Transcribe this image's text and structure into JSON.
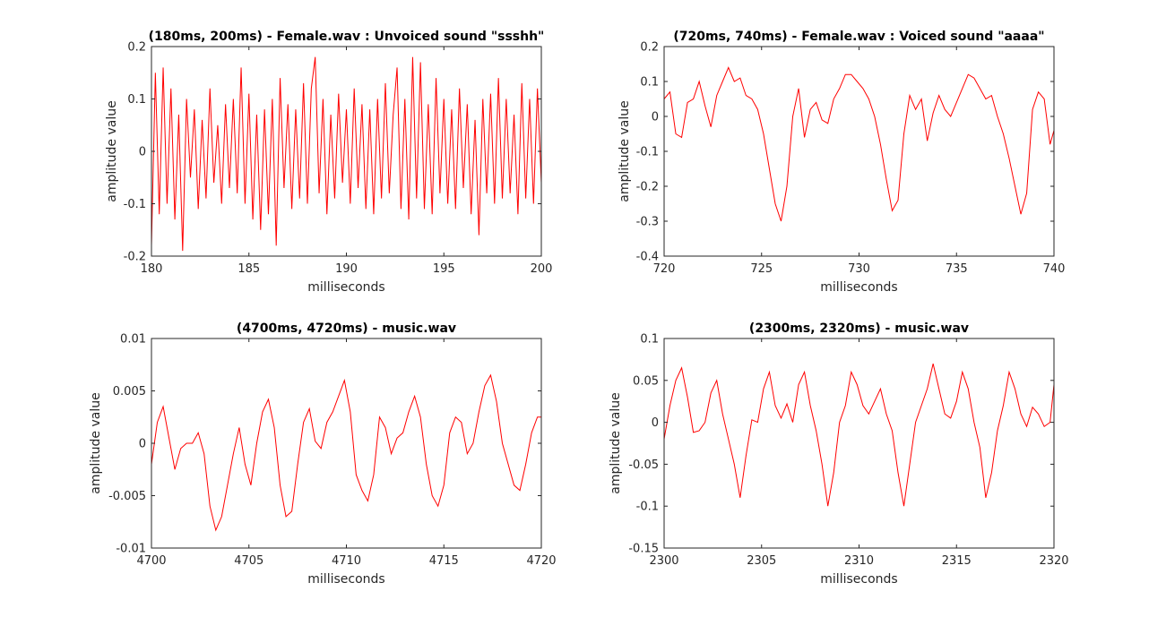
{
  "figure": {
    "background": "#ffffff",
    "line_color": "#ff0000",
    "axis_color": "#262626"
  },
  "chart_data": [
    {
      "type": "line",
      "title": "(180ms, 200ms) - Female.wav : Unvoiced sound \"ssshh\"",
      "xlabel": "milliseconds",
      "ylabel": "amplitude value",
      "xlim": [
        180,
        200
      ],
      "ylim": [
        -0.2,
        0.2
      ],
      "xticks": [
        180,
        185,
        190,
        195,
        200
      ],
      "xtick_labels": [
        "180",
        "185",
        "190",
        "195",
        "200"
      ],
      "yticks": [
        -0.2,
        -0.1,
        0,
        0.1,
        0.2
      ],
      "ytick_labels": [
        "-0.2",
        "-0.1",
        "0",
        "0.1",
        "0.2"
      ],
      "grid": false,
      "series": [
        {
          "x": [
            180,
            180.2,
            180.4,
            180.6,
            180.8,
            181,
            181.2,
            181.4,
            181.6,
            181.8,
            182,
            182.2,
            182.4,
            182.6,
            182.8,
            183,
            183.2,
            183.4,
            183.6,
            183.8,
            184,
            184.2,
            184.4,
            184.6,
            184.8,
            185,
            185.2,
            185.4,
            185.6,
            185.8,
            186,
            186.2,
            186.4,
            186.6,
            186.8,
            187,
            187.2,
            187.4,
            187.6,
            187.8,
            188,
            188.2,
            188.4,
            188.6,
            188.8,
            189,
            189.2,
            189.4,
            189.6,
            189.8,
            190,
            190.2,
            190.4,
            190.6,
            190.8,
            191,
            191.2,
            191.4,
            191.6,
            191.8,
            192,
            192.2,
            192.4,
            192.6,
            192.8,
            193,
            193.2,
            193.4,
            193.6,
            193.8,
            194,
            194.2,
            194.4,
            194.6,
            194.8,
            195,
            195.2,
            195.4,
            195.6,
            195.8,
            196,
            196.2,
            196.4,
            196.6,
            196.8,
            197,
            197.2,
            197.4,
            197.6,
            197.8,
            198,
            198.2,
            198.4,
            198.6,
            198.8,
            199,
            199.2,
            199.4,
            199.6,
            199.8,
            200
          ],
          "y": [
            -0.18,
            0.15,
            -0.12,
            0.16,
            -0.1,
            0.12,
            -0.13,
            0.07,
            -0.19,
            0.1,
            -0.05,
            0.08,
            -0.11,
            0.06,
            -0.09,
            0.12,
            -0.06,
            0.05,
            -0.1,
            0.09,
            -0.07,
            0.1,
            -0.08,
            0.16,
            -0.1,
            0.11,
            -0.13,
            0.07,
            -0.15,
            0.08,
            -0.12,
            0.1,
            -0.18,
            0.14,
            -0.07,
            0.09,
            -0.11,
            0.08,
            -0.09,
            0.13,
            -0.1,
            0.12,
            0.18,
            -0.08,
            0.1,
            -0.12,
            0.07,
            -0.09,
            0.11,
            -0.06,
            0.08,
            -0.1,
            0.12,
            -0.07,
            0.09,
            -0.11,
            0.08,
            -0.12,
            0.1,
            -0.09,
            0.13,
            -0.08,
            0.07,
            0.16,
            -0.11,
            0.1,
            -0.13,
            0.18,
            -0.09,
            0.17,
            -0.11,
            0.09,
            -0.12,
            0.14,
            -0.08,
            0.1,
            -0.1,
            0.08,
            -0.11,
            0.12,
            -0.07,
            0.09,
            -0.12,
            0.06,
            -0.16,
            0.1,
            -0.08,
            0.11,
            -0.1,
            0.14,
            -0.09,
            0.1,
            -0.08,
            0.07,
            -0.12,
            0.13,
            -0.09,
            0.1,
            -0.1,
            0.12,
            -0.06
          ]
        }
      ]
    },
    {
      "type": "line",
      "title": "(720ms, 740ms) - Female.wav : Voiced sound \"aaaa\"",
      "xlabel": "milliseconds",
      "ylabel": "amplitude value",
      "xlim": [
        720,
        740
      ],
      "ylim": [
        -0.4,
        0.2
      ],
      "xticks": [
        720,
        725,
        730,
        735,
        740
      ],
      "xtick_labels": [
        "720",
        "725",
        "730",
        "735",
        "740"
      ],
      "yticks": [
        -0.4,
        -0.3,
        -0.2,
        -0.1,
        0,
        0.1,
        0.2
      ],
      "ytick_labels": [
        "-0.4",
        "-0.3",
        "-0.2",
        "-0.1",
        "0",
        "0.1",
        "0.2"
      ],
      "grid": false,
      "series": [
        {
          "x": [
            720,
            720.3,
            720.6,
            720.9,
            721.2,
            721.5,
            721.8,
            722.1,
            722.4,
            722.7,
            723,
            723.3,
            723.6,
            723.9,
            724.2,
            724.5,
            724.8,
            725.1,
            725.4,
            725.7,
            726,
            726.3,
            726.6,
            726.9,
            727.2,
            727.5,
            727.8,
            728.1,
            728.4,
            728.7,
            729,
            729.3,
            729.6,
            729.9,
            730.2,
            730.5,
            730.8,
            731.1,
            731.4,
            731.7,
            732,
            732.3,
            732.6,
            732.9,
            733.2,
            733.5,
            733.8,
            734.1,
            734.4,
            734.7,
            735,
            735.3,
            735.6,
            735.9,
            736.2,
            736.5,
            736.8,
            737.1,
            737.4,
            737.7,
            738,
            738.3,
            738.6,
            738.9,
            739.2,
            739.5,
            739.8,
            740
          ],
          "y": [
            0.05,
            0.07,
            -0.05,
            -0.06,
            0.04,
            0.05,
            0.1,
            0.03,
            -0.03,
            0.06,
            0.1,
            0.14,
            0.1,
            0.11,
            0.06,
            0.05,
            0.02,
            -0.05,
            -0.15,
            -0.25,
            -0.3,
            -0.2,
            0.0,
            0.08,
            -0.06,
            0.02,
            0.04,
            -0.01,
            -0.02,
            0.05,
            0.08,
            0.12,
            0.12,
            0.1,
            0.08,
            0.05,
            0.0,
            -0.08,
            -0.18,
            -0.27,
            -0.24,
            -0.05,
            0.06,
            0.02,
            0.05,
            -0.07,
            0.01,
            0.06,
            0.02,
            0.0,
            0.04,
            0.08,
            0.12,
            0.11,
            0.08,
            0.05,
            0.06,
            0.0,
            -0.05,
            -0.12,
            -0.2,
            -0.28,
            -0.22,
            0.02,
            0.07,
            0.05,
            -0.08,
            -0.04
          ]
        }
      ]
    },
    {
      "type": "line",
      "title": "(4700ms, 4720ms) - music.wav",
      "xlabel": "milliseconds",
      "ylabel": "amplitude value",
      "xlim": [
        4700,
        4720
      ],
      "ylim": [
        -0.01,
        0.01
      ],
      "xticks": [
        4700,
        4705,
        4710,
        4715,
        4720
      ],
      "xtick_labels": [
        "4700",
        "4705",
        "4710",
        "4715",
        "4720"
      ],
      "yticks": [
        -0.01,
        -0.005,
        0,
        0.005,
        0.01
      ],
      "ytick_labels": [
        "-0.01",
        "-0.005",
        "0",
        "0.005",
        "0.01"
      ],
      "grid": false,
      "series": [
        {
          "x": [
            4700,
            4700.3,
            4700.6,
            4700.9,
            4701.2,
            4701.5,
            4701.8,
            4702.1,
            4702.4,
            4702.7,
            4703,
            4703.3,
            4703.6,
            4703.9,
            4704.2,
            4704.5,
            4704.8,
            4705.1,
            4705.4,
            4705.7,
            4706,
            4706.3,
            4706.6,
            4706.9,
            4707.2,
            4707.5,
            4707.8,
            4708.1,
            4708.4,
            4708.7,
            4709,
            4709.3,
            4709.6,
            4709.9,
            4710.2,
            4710.5,
            4710.8,
            4711.1,
            4711.4,
            4711.7,
            4712,
            4712.3,
            4712.6,
            4712.9,
            4713.2,
            4713.5,
            4713.8,
            4714.1,
            4714.4,
            4714.7,
            4715,
            4715.3,
            4715.6,
            4715.9,
            4716.2,
            4716.5,
            4716.8,
            4717.1,
            4717.4,
            4717.7,
            4718,
            4718.3,
            4718.6,
            4718.9,
            4719.2,
            4719.5,
            4719.8,
            4720
          ],
          "y": [
            -0.002,
            0.002,
            0.0035,
            0.0005,
            -0.0025,
            -0.0005,
            0.0,
            0.0,
            0.001,
            -0.001,
            -0.006,
            -0.0083,
            -0.007,
            -0.004,
            -0.001,
            0.0015,
            -0.002,
            -0.004,
            0.0,
            0.003,
            0.0042,
            0.0015,
            -0.004,
            -0.007,
            -0.0065,
            -0.002,
            0.002,
            0.0033,
            0.0002,
            -0.0005,
            0.002,
            0.003,
            0.0045,
            0.006,
            0.003,
            -0.003,
            -0.0045,
            -0.0055,
            -0.003,
            0.0025,
            0.0015,
            -0.001,
            0.0005,
            0.001,
            0.003,
            0.0045,
            0.0025,
            -0.002,
            -0.005,
            -0.006,
            -0.004,
            0.001,
            0.0025,
            0.002,
            -0.001,
            0.0,
            0.003,
            0.0055,
            0.0065,
            0.004,
            0.0,
            -0.002,
            -0.004,
            -0.0045,
            -0.002,
            0.001,
            0.0025,
            0.0025
          ]
        }
      ]
    },
    {
      "type": "line",
      "title": "(2300ms, 2320ms) - music.wav",
      "xlabel": "milliseconds",
      "ylabel": "amplitude value",
      "xlim": [
        2300,
        2320
      ],
      "ylim": [
        -0.15,
        0.1
      ],
      "xticks": [
        2300,
        2305,
        2310,
        2315,
        2320
      ],
      "xtick_labels": [
        "2300",
        "2305",
        "2310",
        "2315",
        "2320"
      ],
      "yticks": [
        -0.15,
        -0.1,
        -0.05,
        0,
        0.05,
        0.1
      ],
      "ytick_labels": [
        "-0.15",
        "-0.1",
        "-0.05",
        "0",
        "0.05",
        "0.1"
      ],
      "grid": false,
      "series": [
        {
          "x": [
            2300,
            2300.3,
            2300.6,
            2300.9,
            2301.2,
            2301.5,
            2301.8,
            2302.1,
            2302.4,
            2302.7,
            2303,
            2303.3,
            2303.6,
            2303.9,
            2304.2,
            2304.5,
            2304.8,
            2305.1,
            2305.4,
            2305.7,
            2306,
            2306.3,
            2306.6,
            2306.9,
            2307.2,
            2307.5,
            2307.8,
            2308.1,
            2308.4,
            2308.7,
            2309,
            2309.3,
            2309.6,
            2309.9,
            2310.2,
            2310.5,
            2310.8,
            2311.1,
            2311.4,
            2311.7,
            2312,
            2312.3,
            2312.6,
            2312.9,
            2313.2,
            2313.5,
            2313.8,
            2314.1,
            2314.4,
            2314.7,
            2315,
            2315.3,
            2315.6,
            2315.9,
            2316.2,
            2316.5,
            2316.8,
            2317.1,
            2317.4,
            2317.7,
            2318,
            2318.3,
            2318.6,
            2318.9,
            2319.2,
            2319.5,
            2319.8,
            2320
          ],
          "y": [
            -0.02,
            0.02,
            0.05,
            0.065,
            0.03,
            -0.012,
            -0.01,
            0.0,
            0.035,
            0.05,
            0.01,
            -0.02,
            -0.05,
            -0.09,
            -0.04,
            0.003,
            0.0,
            0.04,
            0.06,
            0.02,
            0.005,
            0.022,
            0.0,
            0.045,
            0.06,
            0.02,
            -0.01,
            -0.05,
            -0.1,
            -0.06,
            0.0,
            0.02,
            0.06,
            0.045,
            0.02,
            0.01,
            0.025,
            0.04,
            0.01,
            -0.01,
            -0.06,
            -0.1,
            -0.05,
            0.0,
            0.02,
            0.04,
            0.07,
            0.04,
            0.01,
            0.005,
            0.025,
            0.06,
            0.04,
            0.0,
            -0.03,
            -0.09,
            -0.06,
            -0.01,
            0.02,
            0.06,
            0.04,
            0.01,
            -0.005,
            0.018,
            0.01,
            -0.005,
            0.0,
            0.045
          ]
        }
      ]
    }
  ]
}
